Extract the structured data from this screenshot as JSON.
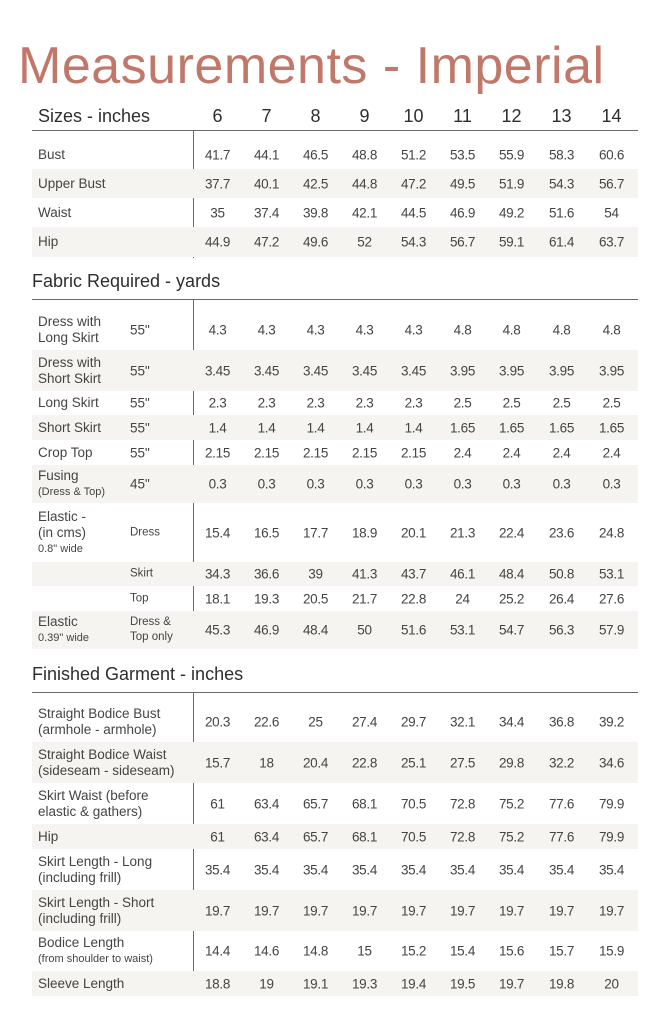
{
  "title": "Measurements - Imperial",
  "sizes_header": {
    "label": "Sizes - inches",
    "sizes": [
      "6",
      "7",
      "8",
      "9",
      "10",
      "11",
      "12",
      "13",
      "14"
    ]
  },
  "body_measurements": [
    {
      "label": "Bust",
      "values": [
        "41.7",
        "44.1",
        "46.5",
        "48.8",
        "51.2",
        "53.5",
        "55.9",
        "58.3",
        "60.6"
      ]
    },
    {
      "label": "Upper Bust",
      "values": [
        "37.7",
        "40.1",
        "42.5",
        "44.8",
        "47.2",
        "49.5",
        "51.9",
        "54.3",
        "56.7"
      ]
    },
    {
      "label": "Waist",
      "values": [
        "35",
        "37.4",
        "39.8",
        "42.1",
        "44.5",
        "46.9",
        "49.2",
        "51.6",
        "54"
      ]
    },
    {
      "label": "Hip",
      "values": [
        "44.9",
        "47.2",
        "49.6",
        "52",
        "54.3",
        "56.7",
        "59.1",
        "61.4",
        "63.7"
      ]
    }
  ],
  "fabric": {
    "title": "Fabric Required - yards",
    "rows": [
      {
        "label": "Dress with",
        "label2": "Long Skirt",
        "sub": "55\"",
        "values": [
          "4.3",
          "4.3",
          "4.3",
          "4.3",
          "4.3",
          "4.8",
          "4.8",
          "4.8",
          "4.8"
        ]
      },
      {
        "label": "Dress with",
        "label2": "Short Skirt",
        "sub": "55\"",
        "values": [
          "3.45",
          "3.45",
          "3.45",
          "3.45",
          "3.45",
          "3.95",
          "3.95",
          "3.95",
          "3.95"
        ]
      },
      {
        "label": "Long Skirt",
        "sub": "55\"",
        "values": [
          "2.3",
          "2.3",
          "2.3",
          "2.3",
          "2.3",
          "2.5",
          "2.5",
          "2.5",
          "2.5"
        ]
      },
      {
        "label": "Short Skirt",
        "sub": "55\"",
        "values": [
          "1.4",
          "1.4",
          "1.4",
          "1.4",
          "1.4",
          "1.65",
          "1.65",
          "1.65",
          "1.65"
        ]
      },
      {
        "label": "Crop Top",
        "sub": "55\"",
        "values": [
          "2.15",
          "2.15",
          "2.15",
          "2.15",
          "2.15",
          "2.4",
          "2.4",
          "2.4",
          "2.4"
        ]
      },
      {
        "label": "Fusing",
        "note": "(Dress & Top)",
        "sub": "45\"",
        "values": [
          "0.3",
          "0.3",
          "0.3",
          "0.3",
          "0.3",
          "0.3",
          "0.3",
          "0.3",
          "0.3"
        ]
      },
      {
        "label": "Elastic  -",
        "label2": "(in cms)",
        "note": " 0.8\" wide",
        "sub": "Dress",
        "values": [
          "15.4",
          "16.5",
          "17.7",
          "18.9",
          "20.1",
          "21.3",
          "22.4",
          "23.6",
          "24.8"
        ]
      },
      {
        "sub": "Skirt",
        "values": [
          "34.3",
          "36.6",
          "39",
          "41.3",
          "43.7",
          "46.1",
          "48.4",
          "50.8",
          "53.1"
        ]
      },
      {
        "sub": "Top",
        "values": [
          "18.1",
          "19.3",
          "20.5",
          "21.7",
          "22.8",
          "24",
          "25.2",
          "26.4",
          "27.6"
        ]
      },
      {
        "label": "Elastic",
        "note": "0.39\" wide",
        "sub": "Dress &",
        "sub2": "Top only",
        "values": [
          "45.3",
          "46.9",
          "48.4",
          "50",
          "51.6",
          "53.1",
          "54.7",
          "56.3",
          "57.9"
        ]
      }
    ]
  },
  "finished": {
    "title": "Finished Garment - inches",
    "rows": [
      {
        "label": "Straight Bodice  Bust",
        "label2": "(armhole - armhole)",
        "values": [
          "20.3",
          "22.6",
          "25",
          "27.4",
          "29.7",
          "32.1",
          "34.4",
          "36.8",
          "39.2"
        ]
      },
      {
        "label": "Straight Bodice  Waist",
        "label2": "(sideseam - sideseam)",
        "values": [
          "15.7",
          "18",
          "20.4",
          "22.8",
          "25.1",
          "27.5",
          "29.8",
          "32.2",
          "34.6"
        ]
      },
      {
        "label": "Skirt Waist (before",
        "label2": "elastic & gathers)",
        "values": [
          "61",
          "63.4",
          "65.7",
          "68.1",
          "70.5",
          "72.8",
          "75.2",
          "77.6",
          "79.9"
        ]
      },
      {
        "label": "Hip",
        "values": [
          "61",
          "63.4",
          "65.7",
          "68.1",
          "70.5",
          "72.8",
          "75.2",
          "77.6",
          "79.9"
        ]
      },
      {
        "label": "Skirt Length - Long",
        "label2": "(including frill)",
        "values": [
          "35.4",
          "35.4",
          "35.4",
          "35.4",
          "35.4",
          "35.4",
          "35.4",
          "35.4",
          "35.4"
        ]
      },
      {
        "label": "Skirt Length - Short",
        "label2": "(including frill)",
        "values": [
          "19.7",
          "19.7",
          "19.7",
          "19.7",
          "19.7",
          "19.7",
          "19.7",
          "19.7",
          "19.7"
        ]
      },
      {
        "label": "Bodice Length",
        "note": "(from shoulder to waist)",
        "values": [
          "14.4",
          "14.6",
          "14.8",
          "15",
          "15.2",
          "15.4",
          "15.6",
          "15.7",
          "15.9"
        ]
      },
      {
        "label": "Sleeve Length",
        "values": [
          "18.8",
          "19",
          "19.1",
          "19.3",
          "19.4",
          "19.5",
          "19.7",
          "19.8",
          "20"
        ]
      }
    ]
  },
  "colors": {
    "title": "#c0786a",
    "shade": "#f5f4f0",
    "rule": "#6a6a6a"
  }
}
